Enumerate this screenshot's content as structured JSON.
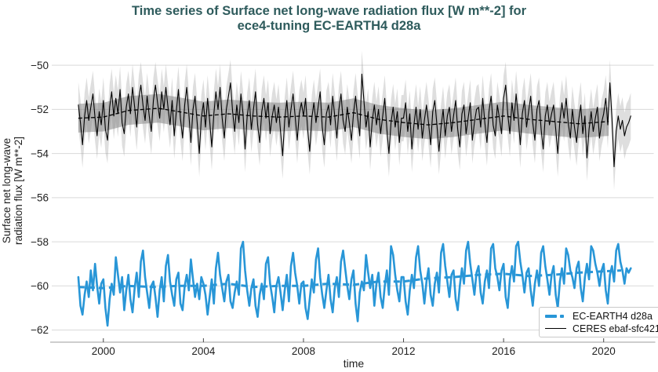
{
  "title": {
    "line1": "Time series of Surface net long-wave radiation flux [W m**-2] for",
    "line2": "ece4-tuning EC-EARTH4 d28a"
  },
  "axes": {
    "xlabel": "time",
    "ylabel_line1": "Surface net long-wave",
    "ylabel_line2": "radiation flux [W m**-2]",
    "x_ticks": [
      {
        "value": 2000,
        "label": "2000"
      },
      {
        "value": 2004,
        "label": "2004"
      },
      {
        "value": 2008,
        "label": "2008"
      },
      {
        "value": 2012,
        "label": "2012"
      },
      {
        "value": 2016,
        "label": "2016"
      },
      {
        "value": 2020,
        "label": "2020"
      }
    ],
    "y_ticks": [
      {
        "value": -50,
        "label": "−50"
      },
      {
        "value": -52,
        "label": "−52"
      },
      {
        "value": -54,
        "label": "−54"
      },
      {
        "value": -56,
        "label": "−56"
      },
      {
        "value": -58,
        "label": "−58"
      },
      {
        "value": -60,
        "label": "−60"
      },
      {
        "value": -62,
        "label": "−62"
      }
    ]
  },
  "legend": [
    {
      "label": "EC-EARTH4 d28a",
      "style": "dashed-thick",
      "color": "#2896d7"
    },
    {
      "label": "CERES ebaf-sfc421",
      "style": "solid-thin",
      "color": "#000000"
    }
  ],
  "colors": {
    "model_blue": "#2896d7",
    "obs_black": "#000000",
    "band_outer": "rgba(160,160,160,0.35)",
    "band_inner": "rgba(125,125,125,0.5)",
    "grid": "#d9d9d9",
    "spine": "#b0b0b0",
    "tick_mark": "#444444",
    "tick_label": "#1f1f1f",
    "title_teal": "#2e5b5c",
    "legend_border": "#c9c9c9"
  },
  "chart_data": {
    "type": "line",
    "title": "Time series of Surface net long-wave radiation flux [W m**-2] for ece4-tuning EC-EARTH4 d28a",
    "xlabel": "time",
    "ylabel": "Surface net long-wave radiation flux [W m**-2]",
    "xlim": [
      1998.0,
      2022.0
    ],
    "ylim": [
      -62.55,
      -48.75
    ],
    "grid": "horizontal",
    "legend_position": "lower right",
    "x_start": 1999.0,
    "x_step": 0.0833333,
    "series": [
      {
        "name": "EC-EARTH4 d28a",
        "color": "#2896d7",
        "line_width": 2.6,
        "values": [
          -59.6,
          -60.9,
          -61.3,
          -60.4,
          -59.8,
          -60.5,
          -59.3,
          -60.2,
          -59.0,
          -60.0,
          -60.8,
          -59.9,
          -59.7,
          -61.0,
          -61.8,
          -60.6,
          -59.9,
          -60.4,
          -58.7,
          -59.5,
          -60.3,
          -59.6,
          -61.1,
          -60.2,
          -59.5,
          -60.6,
          -61.2,
          -60.1,
          -59.4,
          -60.5,
          -58.9,
          -58.4,
          -59.6,
          -60.3,
          -61.0,
          -60.0,
          -59.8,
          -60.5,
          -61.4,
          -60.2,
          -59.6,
          -60.7,
          -59.1,
          -58.6,
          -59.8,
          -60.4,
          -60.9,
          -59.7,
          -59.4,
          -60.8,
          -61.1,
          -60.0,
          -59.5,
          -60.2,
          -58.8,
          -59.7,
          -60.5,
          -59.9,
          -60.6,
          -59.6,
          -59.9,
          -60.4,
          -61.3,
          -60.5,
          -59.7,
          -60.8,
          -59.2,
          -58.5,
          -59.5,
          -60.1,
          -60.7,
          -59.8,
          -59.5,
          -60.7,
          -61.0,
          -60.3,
          -59.8,
          -60.4,
          -58.3,
          -58.0,
          -59.3,
          -60.2,
          -60.9,
          -60.1,
          -59.7,
          -60.9,
          -61.4,
          -60.4,
          -59.9,
          -60.6,
          -59.0,
          -58.7,
          -59.9,
          -60.5,
          -61.2,
          -60.0,
          -59.6,
          -60.3,
          -61.1,
          -60.2,
          -59.5,
          -60.7,
          -59.1,
          -58.5,
          -59.4,
          -60.0,
          -60.8,
          -59.9,
          -59.8,
          -61.0,
          -61.5,
          -60.6,
          -59.7,
          -60.3,
          -58.8,
          -58.3,
          -59.6,
          -60.4,
          -61.0,
          -60.2,
          -59.5,
          -60.6,
          -61.2,
          -60.1,
          -59.6,
          -60.5,
          -58.9,
          -58.4,
          -59.2,
          -60.0,
          -60.6,
          -59.7,
          -59.3,
          -60.8,
          -61.6,
          -60.3,
          -59.8,
          -60.2,
          -58.6,
          -59.4,
          -60.1,
          -59.5,
          -60.9,
          -59.9,
          -59.4,
          -60.5,
          -61.0,
          -60.0,
          -59.3,
          -60.4,
          -58.2,
          -58.6,
          -59.5,
          -60.2,
          -60.7,
          -59.6,
          -59.6,
          -60.7,
          -61.3,
          -60.2,
          -59.5,
          -60.1,
          -58.7,
          -58.2,
          -59.3,
          -59.9,
          -60.8,
          -59.8,
          -59.2,
          -60.4,
          -60.9,
          -59.9,
          -59.4,
          -60.3,
          -58.5,
          -58.1,
          -59.1,
          -59.8,
          -60.5,
          -59.5,
          -59.3,
          -60.6,
          -61.1,
          -60.0,
          -59.2,
          -59.9,
          -58.4,
          -58.0,
          -59.0,
          -59.7,
          -60.4,
          -59.4,
          -59.1,
          -60.3,
          -60.8,
          -59.8,
          -59.3,
          -60.1,
          -58.3,
          -58.1,
          -59.2,
          -59.6,
          -60.2,
          -59.3,
          -59.0,
          -60.5,
          -61.0,
          -59.7,
          -59.1,
          -59.8,
          -58.2,
          -58.0,
          -58.9,
          -59.5,
          -60.3,
          -59.4,
          -59.2,
          -60.2,
          -60.9,
          -59.9,
          -59.3,
          -60.0,
          -58.5,
          -58.2,
          -59.1,
          -59.7,
          -60.4,
          -59.5,
          -59.1,
          -60.4,
          -61.0,
          -59.8,
          -59.2,
          -59.9,
          -58.3,
          -58.6,
          -59.3,
          -59.6,
          -60.1,
          -59.2,
          -58.9,
          -60.1,
          -60.7,
          -59.6,
          -59.0,
          -59.7,
          -58.2,
          -58.4,
          -59.0,
          -59.4,
          -60.0,
          -59.3,
          -59.0,
          -60.2,
          -60.8,
          -59.5,
          -59.1,
          -59.8,
          -58.4,
          -58.1,
          -58.9,
          -59.3,
          -59.9,
          -59.2,
          -59.4,
          -59.2
        ]
      },
      {
        "name": "CERES ebaf-sfc421",
        "color": "#000000",
        "line_width": 1.1,
        "values": [
          -51.8,
          -52.6,
          -53.6,
          -52.3,
          -51.6,
          -52.5,
          -51.9,
          -51.3,
          -52.4,
          -53.2,
          -52.1,
          -52.7,
          -51.6,
          -52.9,
          -53.4,
          -51.9,
          -51.2,
          -52.3,
          -51.5,
          -52.2,
          -51.1,
          -52.6,
          -53.1,
          -51.9,
          -51.3,
          -52.2,
          -51.0,
          -51.9,
          -52.8,
          -51.5,
          -50.9,
          -51.8,
          -52.5,
          -51.4,
          -52.3,
          -53.0,
          -51.6,
          -50.9,
          -51.7,
          -52.4,
          -51.2,
          -52.0,
          -51.0,
          -51.9,
          -52.7,
          -51.6,
          -53.2,
          -52.1,
          -51.1,
          -52.4,
          -53.3,
          -51.8,
          -51.0,
          -52.2,
          -53.5,
          -52.0,
          -51.4,
          -52.6,
          -54.0,
          -52.4,
          -51.7,
          -52.8,
          -51.5,
          -52.5,
          -53.7,
          -52.2,
          -51.2,
          -52.0,
          -51.0,
          -52.4,
          -53.3,
          -52.0,
          -51.4,
          -50.8,
          -52.1,
          -53.0,
          -51.8,
          -52.6,
          -51.3,
          -52.2,
          -53.8,
          -52.3,
          -51.6,
          -52.9,
          -52.0,
          -51.2,
          -52.7,
          -53.5,
          -52.1,
          -51.5,
          -52.4,
          -51.7,
          -53.1,
          -52.3,
          -51.8,
          -52.6,
          -51.9,
          -53.0,
          -54.1,
          -52.5,
          -51.6,
          -52.8,
          -52.0,
          -51.3,
          -52.3,
          -53.4,
          -52.2,
          -51.7,
          -52.3,
          -51.5,
          -52.9,
          -53.9,
          -52.4,
          -51.7,
          -52.6,
          -51.9,
          -51.2,
          -52.8,
          -53.6,
          -52.2,
          -51.8,
          -52.7,
          -51.4,
          -52.3,
          -53.3,
          -52.0,
          -51.3,
          -52.5,
          -53.0,
          -51.9,
          -52.6,
          -53.4,
          -52.2,
          -51.4,
          -52.4,
          -53.2,
          -50.4,
          -51.6,
          -52.8,
          -52.1,
          -53.7,
          -52.5,
          -51.8,
          -52.7,
          -52.0,
          -53.1,
          -52.3,
          -51.5,
          -52.9,
          -54.0,
          -52.6,
          -51.9,
          -52.8,
          -52.1,
          -53.5,
          -52.4,
          -52.4,
          -51.7,
          -53.0,
          -52.2,
          -53.8,
          -52.7,
          -51.9,
          -52.9,
          -52.0,
          -53.3,
          -52.5,
          -51.8,
          -52.6,
          -53.6,
          -52.1,
          -51.6,
          -52.7,
          -53.9,
          -52.8,
          -52.0,
          -53.2,
          -52.3,
          -51.9,
          -53.0,
          -52.3,
          -51.6,
          -52.9,
          -53.7,
          -52.2,
          -51.8,
          -53.1,
          -52.4,
          -51.7,
          -53.4,
          -52.6,
          -52.0,
          -51.9,
          -52.8,
          -51.5,
          -52.6,
          -53.5,
          -52.1,
          -51.4,
          -52.7,
          -53.2,
          -51.8,
          -52.4,
          -53.1,
          -51.5,
          -50.9,
          -52.2,
          -53.1,
          -51.7,
          -52.5,
          -51.3,
          -52.3,
          -53.6,
          -52.2,
          -51.6,
          -52.8,
          -52.1,
          -51.4,
          -52.6,
          -53.4,
          -52.0,
          -51.6,
          -52.9,
          -53.8,
          -52.3,
          -51.8,
          -52.7,
          -52.2,
          -51.8,
          -52.9,
          -54.0,
          -52.5,
          -51.7,
          -52.4,
          -51.5,
          -52.6,
          -53.3,
          -52.0,
          -52.8,
          -53.5,
          -52.5,
          -51.8,
          -53.1,
          -52.3,
          -54.2,
          -52.9,
          -52.1,
          -53.0,
          -52.4,
          -51.9,
          -53.3,
          -52.6,
          -52.2,
          -51.5,
          -52.7,
          -50.8,
          -52.4,
          -54.6,
          -53.0,
          -52.3,
          -52.9,
          -52.5,
          -53.2,
          -52.8,
          -52.6,
          -52.3
        ]
      }
    ],
    "trends": [
      {
        "name": "EC-EARTH4 d28a trend",
        "color": "#2896d7",
        "dash": [
          8,
          5
        ],
        "line_width": 3.0,
        "points": [
          [
            1999.0,
            -60.05
          ],
          [
            2000.0,
            -60.1
          ],
          [
            2001.0,
            -60.0
          ],
          [
            2002.0,
            -60.05
          ],
          [
            2003.0,
            -60.0
          ],
          [
            2004.0,
            -60.0
          ],
          [
            2005.0,
            -59.9
          ],
          [
            2006.0,
            -60.05
          ],
          [
            2007.0,
            -60.0
          ],
          [
            2008.0,
            -60.0
          ],
          [
            2009.0,
            -59.9
          ],
          [
            2010.0,
            -59.95
          ],
          [
            2011.0,
            -59.8
          ],
          [
            2012.0,
            -59.8
          ],
          [
            2013.0,
            -59.65
          ],
          [
            2014.0,
            -59.6
          ],
          [
            2015.0,
            -59.5
          ],
          [
            2016.0,
            -59.45
          ],
          [
            2017.0,
            -59.55
          ],
          [
            2018.0,
            -59.5
          ],
          [
            2019.0,
            -59.4
          ],
          [
            2020.7,
            -59.3
          ]
        ]
      },
      {
        "name": "CERES ebaf-sfc421 trend",
        "color": "#000000",
        "dash": [
          5,
          3
        ],
        "line_width": 1.3,
        "points": [
          [
            1999.0,
            -52.4
          ],
          [
            2000.0,
            -52.35
          ],
          [
            2001.0,
            -52.05
          ],
          [
            2002.2,
            -51.95
          ],
          [
            2003.0,
            -52.1
          ],
          [
            2004.0,
            -52.3
          ],
          [
            2005.0,
            -52.2
          ],
          [
            2006.0,
            -52.3
          ],
          [
            2007.0,
            -52.35
          ],
          [
            2008.0,
            -52.3
          ],
          [
            2009.0,
            -52.35
          ],
          [
            2010.0,
            -52.15
          ],
          [
            2011.0,
            -52.45
          ],
          [
            2012.0,
            -52.6
          ],
          [
            2013.0,
            -52.7
          ],
          [
            2014.0,
            -52.6
          ],
          [
            2015.0,
            -52.45
          ],
          [
            2016.0,
            -52.3
          ],
          [
            2017.0,
            -52.45
          ],
          [
            2018.0,
            -52.55
          ],
          [
            2019.0,
            -52.65
          ],
          [
            2020.2,
            -52.55
          ]
        ]
      }
    ],
    "bands": [
      {
        "name": "ceres-outer-uncertainty",
        "source": "series",
        "index": 1,
        "half_width": 1.05,
        "fill": "rgba(160,160,160,0.35)"
      },
      {
        "name": "ceres-inner-uncertainty",
        "source": "trend",
        "index": 1,
        "half_width": 0.65,
        "fill": "rgba(125,125,125,0.5)"
      }
    ]
  }
}
